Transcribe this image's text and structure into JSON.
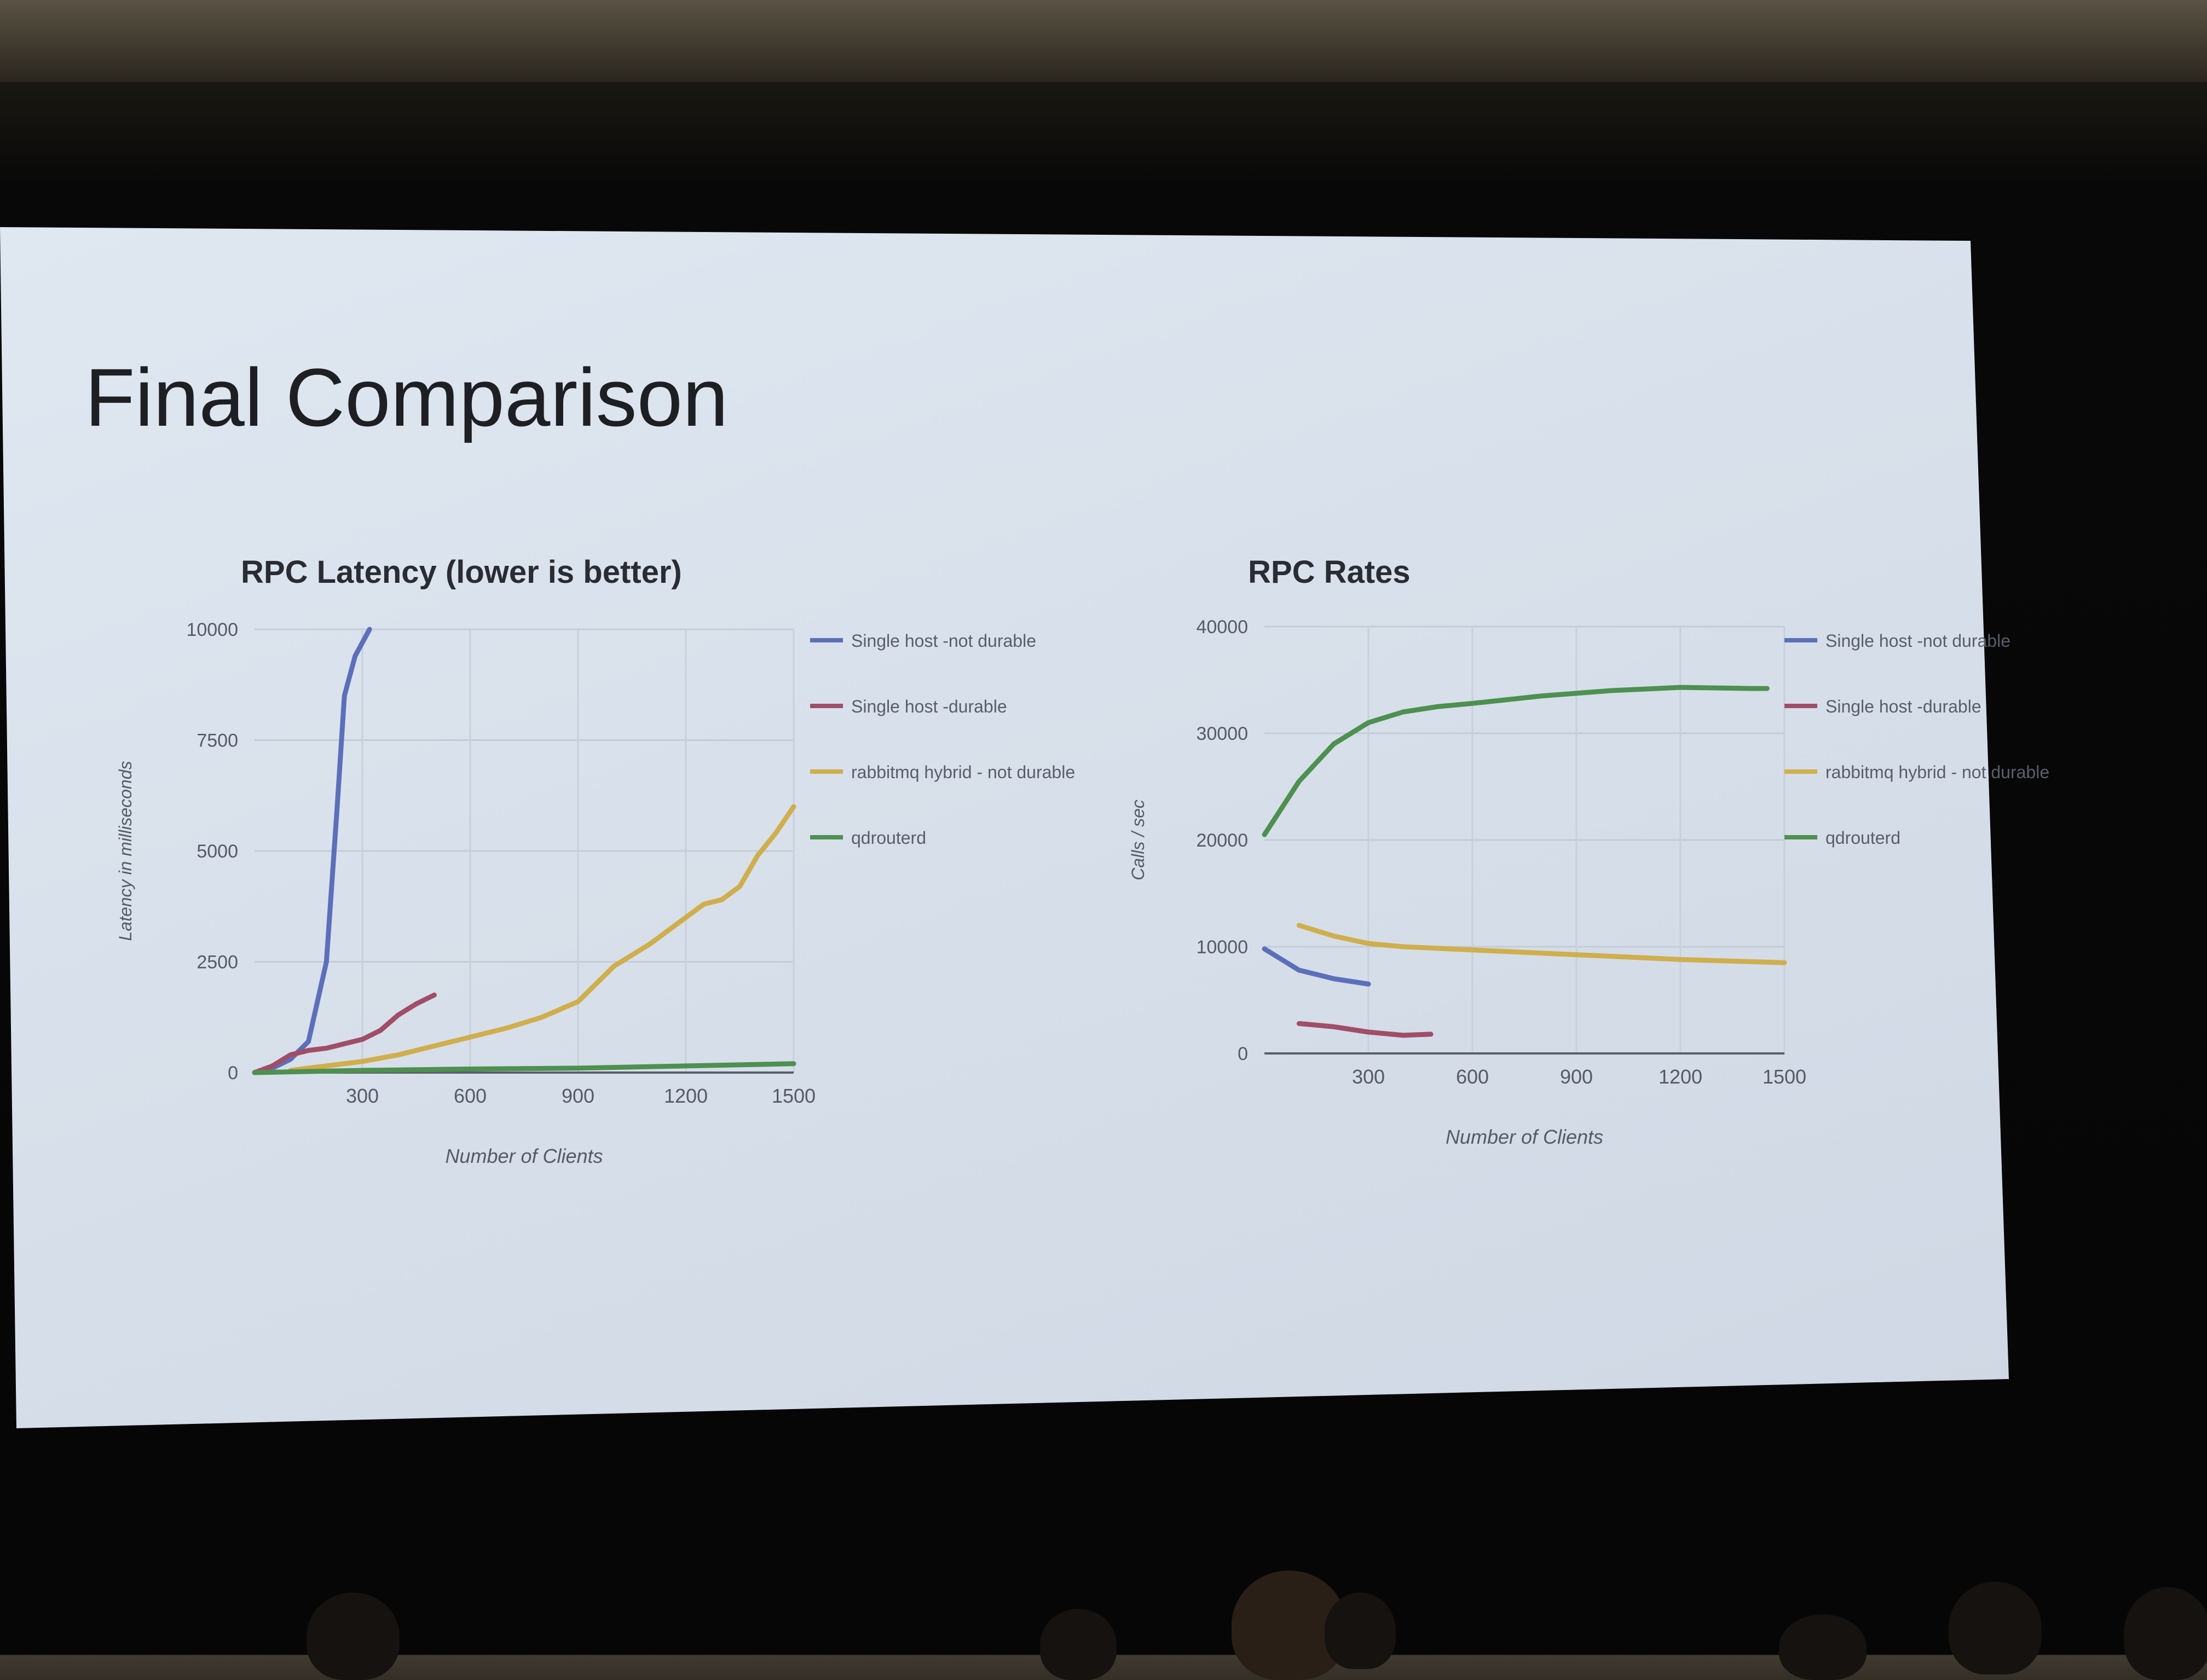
{
  "slide": {
    "title": "Final Comparison"
  },
  "chart_data": [
    {
      "type": "line",
      "title": "RPC Latency (lower is better)",
      "xlabel": "Number of Clients",
      "ylabel": "Latency in milliseconds",
      "xlim": [
        0,
        1500
      ],
      "ylim": [
        0,
        10000
      ],
      "x_ticks": [
        "300",
        "600",
        "900",
        "1200",
        "1500"
      ],
      "y_ticks": [
        "0",
        "2500",
        "5000",
        "7500",
        "10000"
      ],
      "grid": true,
      "legend_position": "right",
      "legend": [
        "Single host -not durable",
        "Single host -durable",
        "rabbitmq hybrid - not durable",
        "qdrouterd"
      ],
      "series": [
        {
          "name": "Single host -not durable",
          "color": "#5c6fba",
          "x": [
            0,
            50,
            100,
            150,
            200,
            230,
            250,
            280,
            320
          ],
          "y": [
            0,
            100,
            300,
            700,
            2500,
            6000,
            8500,
            9400,
            10000
          ]
        },
        {
          "name": "Single host -durable",
          "color": "#a04e68",
          "x": [
            0,
            50,
            100,
            150,
            200,
            250,
            300,
            350,
            400,
            450,
            500
          ],
          "y": [
            0,
            150,
            400,
            500,
            550,
            650,
            750,
            950,
            1300,
            1550,
            1750
          ]
        },
        {
          "name": "rabbitmq hybrid - not durable",
          "color": "#cfae4c",
          "x": [
            100,
            200,
            300,
            400,
            500,
            600,
            700,
            800,
            900,
            950,
            1000,
            1100,
            1150,
            1200,
            1250,
            1300,
            1350,
            1400,
            1450,
            1500
          ],
          "y": [
            50,
            150,
            250,
            400,
            600,
            800,
            1000,
            1250,
            1600,
            2000,
            2400,
            2900,
            3200,
            3500,
            3800,
            3900,
            4200,
            4900,
            5400,
            6000
          ]
        },
        {
          "name": "qdrouterd",
          "color": "#4e9050",
          "x": [
            0,
            300,
            600,
            900,
            1200,
            1500
          ],
          "y": [
            0,
            50,
            80,
            100,
            150,
            200
          ]
        }
      ]
    },
    {
      "type": "line",
      "title": "RPC Rates",
      "xlabel": "Number of Clients",
      "ylabel": "Calls / sec",
      "xlim": [
        0,
        1500
      ],
      "ylim": [
        0,
        40000
      ],
      "x_ticks": [
        "300",
        "600",
        "900",
        "1200",
        "1500"
      ],
      "y_ticks": [
        "0",
        "10000",
        "20000",
        "30000",
        "40000"
      ],
      "grid": true,
      "legend_position": "right",
      "legend": [
        "Single host -not durable",
        "Single host -durable",
        "rabbitmq hybrid - not durable",
        "qdrouterd"
      ],
      "series": [
        {
          "name": "Single host -not durable",
          "color": "#5c6fba",
          "x": [
            0,
            100,
            200,
            300
          ],
          "y": [
            9800,
            7800,
            7000,
            6500
          ]
        },
        {
          "name": "Single host -durable",
          "color": "#a04e68",
          "x": [
            100,
            200,
            300,
            400,
            480
          ],
          "y": [
            2800,
            2500,
            2000,
            1700,
            1800
          ]
        },
        {
          "name": "rabbitmq hybrid - not durable",
          "color": "#cfae4c",
          "x": [
            100,
            200,
            300,
            400,
            600,
            800,
            1000,
            1200,
            1400,
            1500
          ],
          "y": [
            12000,
            11000,
            10300,
            10000,
            9700,
            9400,
            9100,
            8800,
            8600,
            8500
          ]
        },
        {
          "name": "qdrouterd",
          "color": "#4e9050",
          "x": [
            0,
            100,
            200,
            300,
            400,
            500,
            600,
            800,
            1000,
            1200,
            1400,
            1450
          ],
          "y": [
            20500,
            25500,
            29000,
            31000,
            32000,
            32500,
            32800,
            33500,
            34000,
            34300,
            34200,
            34200
          ]
        }
      ]
    }
  ]
}
